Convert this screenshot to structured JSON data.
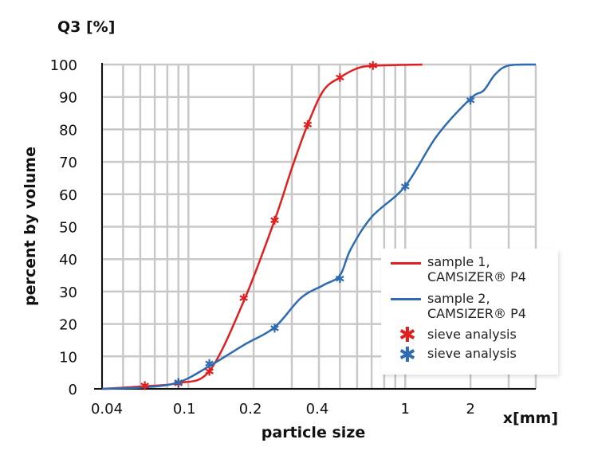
{
  "chart_data": {
    "type": "line",
    "title": "",
    "y_title": "Q3 [%]",
    "ylabel": "percent by volume",
    "xlabel": "particle size",
    "x_unit_label": "x[mm]",
    "x_scale": "log",
    "xlim": [
      0.04,
      4
    ],
    "ylim": [
      0,
      100
    ],
    "grid": true,
    "x_ticks": [
      0.04,
      0.1,
      0.2,
      0.4,
      1,
      2
    ],
    "x_tick_labels": [
      "0.04",
      "0.1",
      "0.2",
      "0.4",
      "1",
      "2"
    ],
    "y_ticks": [
      0,
      10,
      20,
      30,
      40,
      50,
      60,
      70,
      80,
      90,
      100
    ],
    "y_tick_labels": [
      "0",
      "10",
      "20",
      "30",
      "40",
      "50",
      "60",
      "70",
      "80",
      "90",
      "100"
    ],
    "legend_position": "bottom-right",
    "series": [
      {
        "name": "sample 1, CAMSIZER® P4",
        "legend_lines": [
          "sample 1,",
          "CAMSIZER® P4"
        ],
        "kind": "line",
        "color": "#e02020",
        "x": [
          0.04,
          0.063,
          0.09,
          0.125,
          0.18,
          0.25,
          0.3,
          0.355,
          0.42,
          0.5,
          0.6,
          0.71,
          1.2
        ],
        "y": [
          0,
          0.8,
          1.8,
          5.5,
          27,
          52,
          68,
          81.5,
          92,
          96,
          98.8,
          99.6,
          100
        ]
      },
      {
        "name": "sample 2, CAMSIZER® P4",
        "legend_lines": [
          "sample 2,",
          "CAMSIZER® P4"
        ],
        "kind": "line",
        "color": "#2e6bb0",
        "x": [
          0.04,
          0.063,
          0.09,
          0.125,
          0.18,
          0.25,
          0.33,
          0.42,
          0.5,
          0.56,
          0.7,
          1.0,
          1.4,
          2.0,
          2.3,
          2.6,
          3.0,
          4.0
        ],
        "y": [
          0,
          0.5,
          2,
          7,
          13.5,
          19,
          28,
          32,
          35,
          43,
          53,
          62.5,
          78,
          89.5,
          92,
          97,
          99.7,
          100
        ]
      },
      {
        "name": "sieve analysis",
        "kind": "marker",
        "color": "#e02020",
        "x": [
          0.063,
          0.09,
          0.125,
          0.18,
          0.25,
          0.355,
          0.5,
          0.71
        ],
        "y": [
          1,
          1.7,
          5.4,
          28,
          52,
          81.5,
          96,
          99.7
        ]
      },
      {
        "name": "sieve analysis",
        "kind": "marker",
        "color": "#2e6bb0",
        "x": [
          0.09,
          0.125,
          0.25,
          0.5,
          1.0,
          2.0
        ],
        "y": [
          2,
          7.8,
          18.7,
          34,
          62.4,
          89
        ]
      }
    ]
  }
}
